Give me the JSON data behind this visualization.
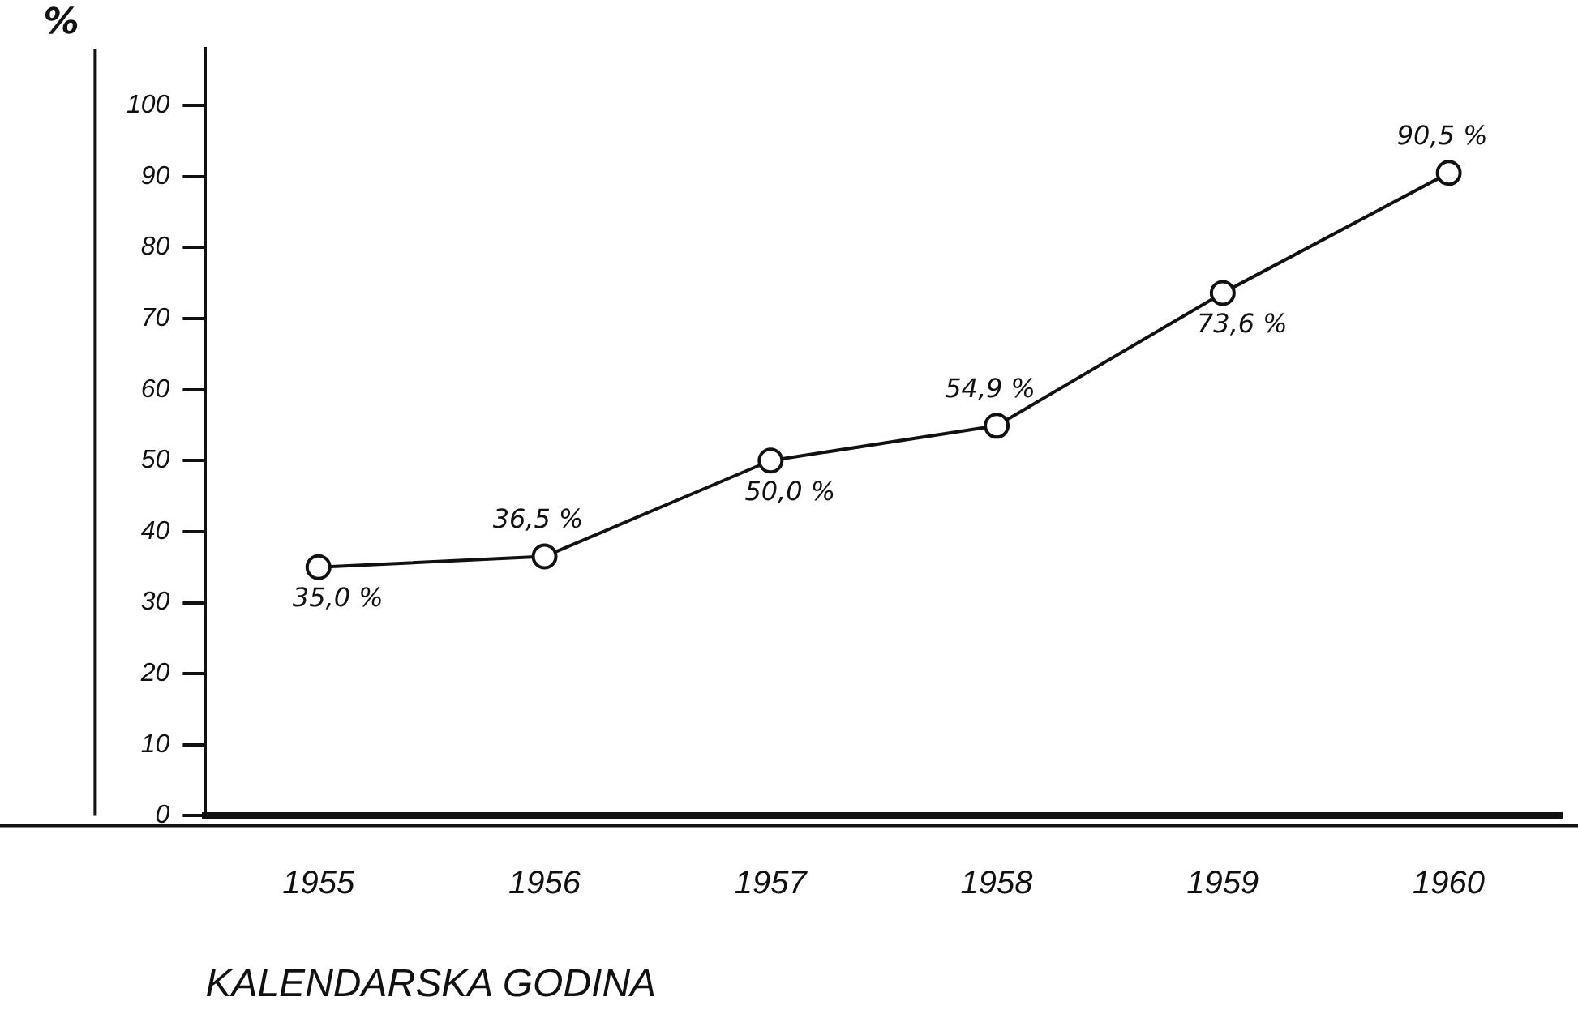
{
  "chart_data": {
    "type": "line",
    "ylabel": "%",
    "xlabel": "KALENDARSKA GODINA",
    "categories": [
      "1955",
      "1956",
      "1957",
      "1958",
      "1959",
      "1960"
    ],
    "series": [
      {
        "color": "#111111",
        "values": [
          35.0,
          36.5,
          50.0,
          54.9,
          73.6,
          90.5
        ],
        "value_labels": [
          "35,0 %",
          "36,5 %",
          "50,0 %",
          "54,9 %",
          "73,6 %",
          "90,5 %"
        ]
      }
    ],
    "ylim": [
      0,
      108
    ],
    "yticks": [
      0,
      10,
      20,
      30,
      40,
      50,
      60,
      70,
      80,
      90,
      100
    ],
    "marker": "circle",
    "line_style": "solid",
    "grid": false,
    "legend": false
  }
}
